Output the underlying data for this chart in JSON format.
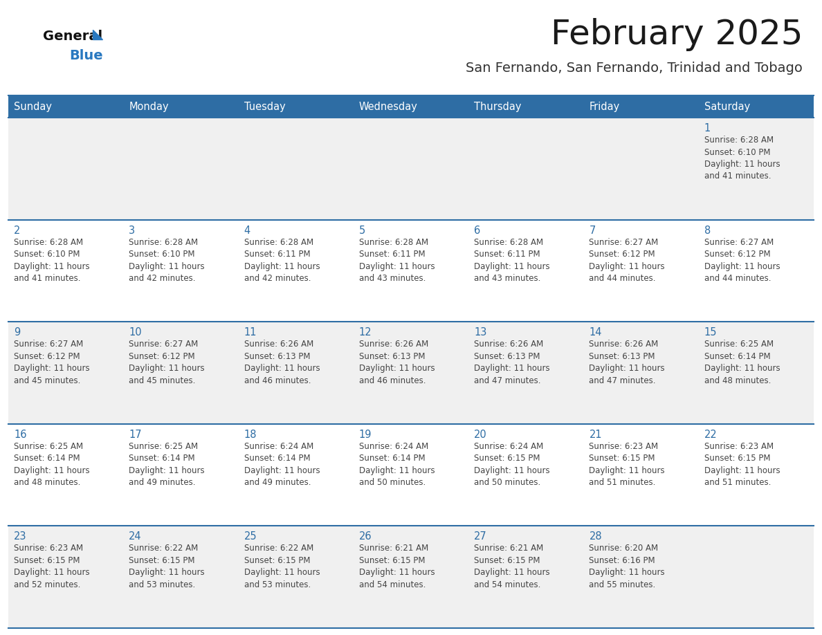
{
  "title": "February 2025",
  "subtitle": "San Fernando, San Fernando, Trinidad and Tobago",
  "days_of_week": [
    "Sunday",
    "Monday",
    "Tuesday",
    "Wednesday",
    "Thursday",
    "Friday",
    "Saturday"
  ],
  "header_bg": "#2E6DA4",
  "header_text": "#FFFFFF",
  "cell_bg_odd": "#F0F0F0",
  "cell_bg_even": "#FFFFFF",
  "cell_border_color": "#2E6DA4",
  "day_num_color": "#2E6DA4",
  "cell_text_color": "#444444",
  "title_color": "#1a1a1a",
  "subtitle_color": "#333333",
  "logo_general_color": "#111111",
  "logo_blue_color": "#2878C0",
  "calendar_data": [
    [
      null,
      null,
      null,
      null,
      null,
      null,
      {
        "day": 1,
        "sunrise": "6:28 AM",
        "sunset": "6:10 PM",
        "daylight": "11 hours\nand 41 minutes."
      }
    ],
    [
      {
        "day": 2,
        "sunrise": "6:28 AM",
        "sunset": "6:10 PM",
        "daylight": "11 hours\nand 41 minutes."
      },
      {
        "day": 3,
        "sunrise": "6:28 AM",
        "sunset": "6:10 PM",
        "daylight": "11 hours\nand 42 minutes."
      },
      {
        "day": 4,
        "sunrise": "6:28 AM",
        "sunset": "6:11 PM",
        "daylight": "11 hours\nand 42 minutes."
      },
      {
        "day": 5,
        "sunrise": "6:28 AM",
        "sunset": "6:11 PM",
        "daylight": "11 hours\nand 43 minutes."
      },
      {
        "day": 6,
        "sunrise": "6:28 AM",
        "sunset": "6:11 PM",
        "daylight": "11 hours\nand 43 minutes."
      },
      {
        "day": 7,
        "sunrise": "6:27 AM",
        "sunset": "6:12 PM",
        "daylight": "11 hours\nand 44 minutes."
      },
      {
        "day": 8,
        "sunrise": "6:27 AM",
        "sunset": "6:12 PM",
        "daylight": "11 hours\nand 44 minutes."
      }
    ],
    [
      {
        "day": 9,
        "sunrise": "6:27 AM",
        "sunset": "6:12 PM",
        "daylight": "11 hours\nand 45 minutes."
      },
      {
        "day": 10,
        "sunrise": "6:27 AM",
        "sunset": "6:12 PM",
        "daylight": "11 hours\nand 45 minutes."
      },
      {
        "day": 11,
        "sunrise": "6:26 AM",
        "sunset": "6:13 PM",
        "daylight": "11 hours\nand 46 minutes."
      },
      {
        "day": 12,
        "sunrise": "6:26 AM",
        "sunset": "6:13 PM",
        "daylight": "11 hours\nand 46 minutes."
      },
      {
        "day": 13,
        "sunrise": "6:26 AM",
        "sunset": "6:13 PM",
        "daylight": "11 hours\nand 47 minutes."
      },
      {
        "day": 14,
        "sunrise": "6:26 AM",
        "sunset": "6:13 PM",
        "daylight": "11 hours\nand 47 minutes."
      },
      {
        "day": 15,
        "sunrise": "6:25 AM",
        "sunset": "6:14 PM",
        "daylight": "11 hours\nand 48 minutes."
      }
    ],
    [
      {
        "day": 16,
        "sunrise": "6:25 AM",
        "sunset": "6:14 PM",
        "daylight": "11 hours\nand 48 minutes."
      },
      {
        "day": 17,
        "sunrise": "6:25 AM",
        "sunset": "6:14 PM",
        "daylight": "11 hours\nand 49 minutes."
      },
      {
        "day": 18,
        "sunrise": "6:24 AM",
        "sunset": "6:14 PM",
        "daylight": "11 hours\nand 49 minutes."
      },
      {
        "day": 19,
        "sunrise": "6:24 AM",
        "sunset": "6:14 PM",
        "daylight": "11 hours\nand 50 minutes."
      },
      {
        "day": 20,
        "sunrise": "6:24 AM",
        "sunset": "6:15 PM",
        "daylight": "11 hours\nand 50 minutes."
      },
      {
        "day": 21,
        "sunrise": "6:23 AM",
        "sunset": "6:15 PM",
        "daylight": "11 hours\nand 51 minutes."
      },
      {
        "day": 22,
        "sunrise": "6:23 AM",
        "sunset": "6:15 PM",
        "daylight": "11 hours\nand 51 minutes."
      }
    ],
    [
      {
        "day": 23,
        "sunrise": "6:23 AM",
        "sunset": "6:15 PM",
        "daylight": "11 hours\nand 52 minutes."
      },
      {
        "day": 24,
        "sunrise": "6:22 AM",
        "sunset": "6:15 PM",
        "daylight": "11 hours\nand 53 minutes."
      },
      {
        "day": 25,
        "sunrise": "6:22 AM",
        "sunset": "6:15 PM",
        "daylight": "11 hours\nand 53 minutes."
      },
      {
        "day": 26,
        "sunrise": "6:21 AM",
        "sunset": "6:15 PM",
        "daylight": "11 hours\nand 54 minutes."
      },
      {
        "day": 27,
        "sunrise": "6:21 AM",
        "sunset": "6:15 PM",
        "daylight": "11 hours\nand 54 minutes."
      },
      {
        "day": 28,
        "sunrise": "6:20 AM",
        "sunset": "6:16 PM",
        "daylight": "11 hours\nand 55 minutes."
      },
      null
    ]
  ]
}
